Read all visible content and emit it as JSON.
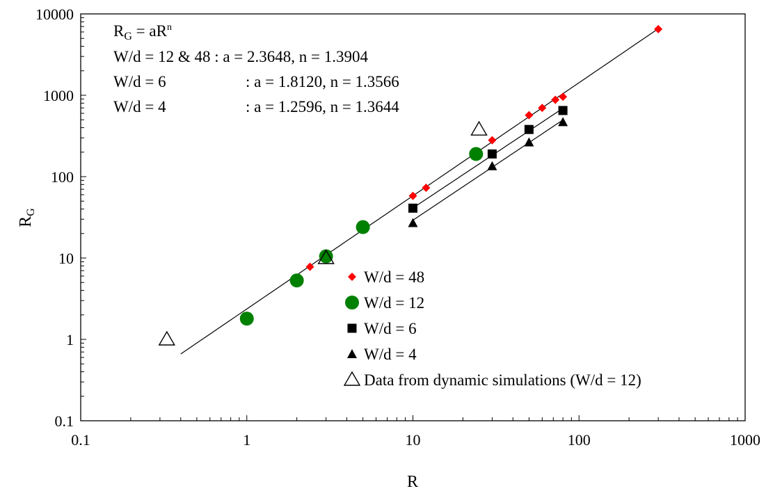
{
  "chart_data": {
    "type": "scatter",
    "xscale": "log",
    "yscale": "log",
    "xlim": [
      0.1,
      1000
    ],
    "ylim": [
      0.1,
      10000
    ],
    "xlabel": "R",
    "ylabel": {
      "main": "R",
      "sub": "G"
    },
    "x_tick_labels": [
      "0.1",
      "1",
      "10",
      "100",
      "1000"
    ],
    "y_tick_labels": [
      "0.1",
      "1",
      "10",
      "100",
      "1000",
      "10000"
    ],
    "grid": false,
    "legend_position": "lower-center",
    "annotations": {
      "formula": {
        "lhs_main": "R",
        "lhs_sub": "G",
        "mid": " = aR",
        "exp": "n"
      },
      "lines": [
        "W/d = 12 & 48 : a = 2.3648, n = 1.3904",
        "W/d = 6",
        ": a = 1.8120, n = 1.3566",
        "W/d = 4",
        ": a = 1.2596, n = 1.3644"
      ]
    },
    "fits": [
      {
        "label": "W/d = 12 & 48",
        "a": 2.3648,
        "n": 1.3904,
        "x_range": [
          0.4,
          300
        ]
      },
      {
        "label": "W/d = 6",
        "a": 1.812,
        "n": 1.3566,
        "x_range": [
          10,
          80
        ]
      },
      {
        "label": "W/d = 4",
        "a": 1.2596,
        "n": 1.3644,
        "x_range": [
          10,
          80
        ]
      }
    ],
    "series": [
      {
        "name": "W/d = 48",
        "marker": "diamond",
        "color": "#ff0000",
        "points": [
          [
            2.4,
            7.8
          ],
          [
            10,
            58
          ],
          [
            12,
            73
          ],
          [
            30,
            280
          ],
          [
            50,
            570
          ],
          [
            60,
            700
          ],
          [
            72,
            880
          ],
          [
            80,
            960
          ],
          [
            300,
            6500
          ]
        ]
      },
      {
        "name": "W/d = 12",
        "marker": "circle",
        "color": "#008000",
        "points": [
          [
            1,
            1.8
          ],
          [
            2,
            5.3
          ],
          [
            3,
            10.5
          ],
          [
            5,
            24
          ],
          [
            24,
            190
          ]
        ]
      },
      {
        "name": "W/d = 6",
        "marker": "square",
        "color": "#000000",
        "points": [
          [
            10,
            41
          ],
          [
            30,
            190
          ],
          [
            50,
            380
          ],
          [
            80,
            650
          ]
        ]
      },
      {
        "name": "W/d = 4",
        "marker": "triangle",
        "color": "#000000",
        "points": [
          [
            10,
            27
          ],
          [
            30,
            135
          ],
          [
            50,
            265
          ],
          [
            80,
            470
          ]
        ]
      },
      {
        "name": "Data from dynamic simulations (W/d = 12)",
        "marker": "open-triangle",
        "color": "#000000",
        "points": [
          [
            0.33,
            1.0
          ],
          [
            3,
            10
          ],
          [
            25,
            380
          ]
        ]
      }
    ]
  }
}
